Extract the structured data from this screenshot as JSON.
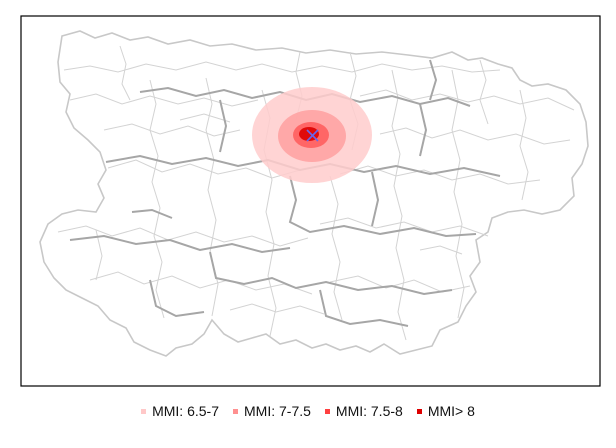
{
  "map": {
    "epicenter_marker": "x-marker",
    "colors": {
      "frame": "#000000",
      "minor_borders": "#cccccc",
      "major_borders": "#a6a6a6",
      "epicenter": "#6666ee"
    },
    "intensity_zones": [
      {
        "label": "MMI: 6.5-7",
        "color": "#ffcccc",
        "opacity": 0.85
      },
      {
        "label": "MMI: 7-7.5",
        "color": "#ff9999",
        "opacity": 0.75
      },
      {
        "label": "MMI: 7.5-8",
        "color": "#ff5555",
        "opacity": 0.8
      },
      {
        "label": "MMI> 8",
        "color": "#dd0000",
        "opacity": 0.9
      }
    ]
  },
  "legend": {
    "items": [
      {
        "label": "MMI: 6.5-7",
        "color": "#ffc8c8"
      },
      {
        "label": "MMI: 7-7.5",
        "color": "#ff9090"
      },
      {
        "label": "MMI: 7.5-8",
        "color": "#ff4040"
      },
      {
        "label": "MMI> 8",
        "color": "#dd0000"
      }
    ]
  }
}
